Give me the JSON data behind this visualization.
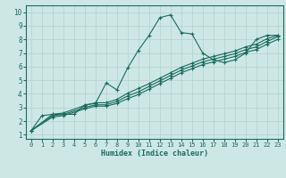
{
  "xlabel": "Humidex (Indice chaleur)",
  "ylabel": "",
  "xlim": [
    -0.5,
    23.5
  ],
  "ylim": [
    0.7,
    10.5
  ],
  "xticks": [
    0,
    1,
    2,
    3,
    4,
    5,
    6,
    7,
    8,
    9,
    10,
    11,
    12,
    13,
    14,
    15,
    16,
    17,
    18,
    19,
    20,
    21,
    22,
    23
  ],
  "yticks": [
    1,
    2,
    3,
    4,
    5,
    6,
    7,
    8,
    9,
    10
  ],
  "bg_color": "#cde8e4",
  "line_color": "#1a6b5e",
  "grid_color": "#b8d4d0",
  "lines": [
    {
      "x": [
        0,
        1,
        2,
        3,
        4,
        5,
        6,
        7,
        8,
        9,
        10,
        11,
        12,
        13,
        14,
        15,
        16,
        17,
        18,
        19,
        20,
        21,
        22,
        23
      ],
      "y": [
        1.3,
        2.4,
        2.5,
        2.5,
        2.5,
        3.2,
        3.3,
        4.8,
        4.3,
        5.9,
        7.2,
        8.3,
        9.6,
        9.8,
        8.5,
        8.4,
        7.0,
        6.5,
        6.3,
        6.5,
        7.0,
        8.0,
        8.3,
        8.3
      ]
    },
    {
      "x": [
        0,
        2,
        3,
        5,
        6,
        7,
        8,
        9,
        10,
        11,
        12,
        13,
        14,
        15,
        16,
        17,
        18,
        19,
        20,
        21,
        22,
        23
      ],
      "y": [
        1.3,
        2.5,
        2.6,
        3.15,
        3.35,
        3.35,
        3.6,
        4.05,
        4.4,
        4.75,
        5.15,
        5.55,
        5.95,
        6.25,
        6.55,
        6.75,
        6.95,
        7.15,
        7.45,
        7.65,
        8.05,
        8.3
      ]
    },
    {
      "x": [
        0,
        2,
        3,
        5,
        6,
        7,
        8,
        9,
        10,
        11,
        12,
        13,
        14,
        15,
        16,
        17,
        18,
        19,
        20,
        21,
        22,
        23
      ],
      "y": [
        1.3,
        2.4,
        2.5,
        3.0,
        3.2,
        3.2,
        3.45,
        3.85,
        4.15,
        4.55,
        4.95,
        5.35,
        5.75,
        6.05,
        6.35,
        6.55,
        6.75,
        6.95,
        7.25,
        7.45,
        7.85,
        8.2
      ]
    },
    {
      "x": [
        0,
        2,
        3,
        5,
        6,
        7,
        8,
        9,
        10,
        11,
        12,
        13,
        14,
        15,
        16,
        17,
        18,
        19,
        20,
        21,
        22,
        23
      ],
      "y": [
        1.3,
        2.3,
        2.4,
        2.9,
        3.1,
        3.1,
        3.3,
        3.65,
        3.95,
        4.35,
        4.75,
        5.15,
        5.55,
        5.85,
        6.15,
        6.35,
        6.55,
        6.75,
        7.05,
        7.25,
        7.65,
        8.0
      ]
    }
  ]
}
